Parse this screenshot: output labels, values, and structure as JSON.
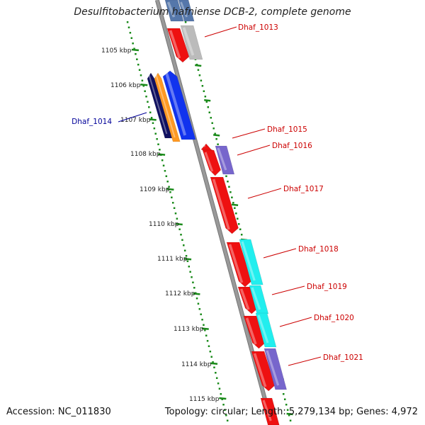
{
  "title": "Desulfitobacterium hafniense DCB-2, complete genome",
  "accession_label": "Accession: NC_011830",
  "summary_label": "Topology: circular; Length: 5,279,134 bp; Genes: 4,972",
  "scale_labels": [
    "1105 kbp",
    "1106 kbp",
    "1107 kbp",
    "1108 kbp",
    "1109 kbp",
    "1110 kbp",
    "1111 kbp",
    "1112 kbp",
    "1113 kbp",
    "1114 kbp",
    "1115 kbp"
  ],
  "colors": {
    "backbone": "#999999",
    "ruler": "#1a8a1a",
    "gene_label": "#cc0000",
    "gene_label_selected": "#000099",
    "red": "#ee1111",
    "blue": "#1133ee",
    "navy": "#101060",
    "orange": "#ff9922",
    "gray": "#bbbbbb",
    "purple": "#7766cc",
    "cyan": "#22eeee",
    "steel": "#5577aa"
  },
  "gene_labels": [
    "Dhaf_1013",
    "Dhaf_1014",
    "Dhaf_1015",
    "Dhaf_1016",
    "Dhaf_1017",
    "Dhaf_1018",
    "Dhaf_1019",
    "Dhaf_1020",
    "Dhaf_1021"
  ]
}
